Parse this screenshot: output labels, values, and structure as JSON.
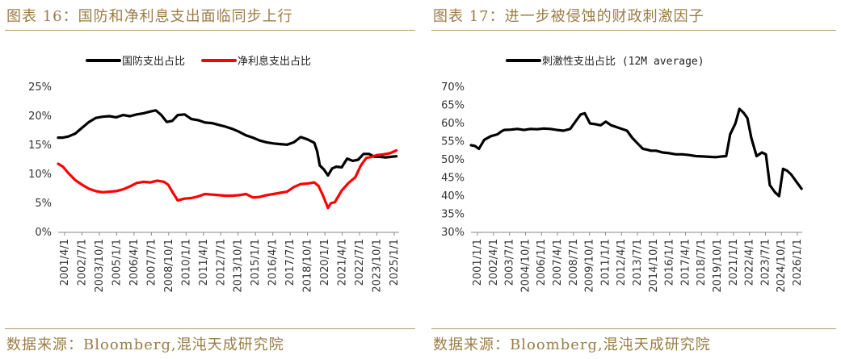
{
  "panels": [
    {
      "title": "图表 16：国防和净利息支出面临同步上行",
      "source": "数据来源：Bloomberg,混沌天成研究院"
    },
    {
      "title": "图表 17：进一步被侵蚀的财政刺激因子",
      "source": "数据来源：Bloomberg,混沌天成研究院"
    }
  ],
  "chart_data": [
    {
      "type": "line",
      "legend_position": "top",
      "grid": false,
      "ylim": [
        0,
        25
      ],
      "y_ticks": [
        "0%",
        "5%",
        "10%",
        "15%",
        "20%",
        "25%"
      ],
      "x_range": [
        2001.25,
        2026.2
      ],
      "x_tick_labels": [
        "2001/4/1",
        "2002/7/1",
        "2003/10/1",
        "2005/1/1",
        "2006/4/1",
        "2007/7/1",
        "2008/10/1",
        "2010/1/1",
        "2011/4/1",
        "2012/7/1",
        "2013/10/1",
        "2015/1/1",
        "2016/4/1",
        "2017/7/1",
        "2018/10/1",
        "2020/1/1",
        "2021/4/1",
        "2022/7/1",
        "2023/10/1",
        "2025/1/1"
      ],
      "series": [
        {
          "name": "国防支出占比",
          "color": "#000000",
          "x": [
            2001.25,
            2001.6,
            2002.0,
            2002.5,
            2003.0,
            2003.5,
            2004.0,
            2004.5,
            2005.0,
            2005.5,
            2006.0,
            2006.5,
            2007.0,
            2007.5,
            2008.0,
            2008.4,
            2008.8,
            2009.2,
            2009.6,
            2010.0,
            2010.5,
            2011.0,
            2011.5,
            2012.0,
            2012.5,
            2013.0,
            2013.5,
            2014.0,
            2014.5,
            2015.0,
            2015.5,
            2016.0,
            2016.5,
            2017.0,
            2017.5,
            2018.0,
            2018.5,
            2019.0,
            2019.5,
            2020.0,
            2020.2,
            2020.4,
            2020.7,
            2021.0,
            2021.3,
            2021.6,
            2022.0,
            2022.4,
            2022.8,
            2023.2,
            2023.6,
            2024.0,
            2024.4,
            2024.8,
            2025.2,
            2025.6,
            2026.0
          ],
          "values": [
            16.3,
            16.3,
            16.5,
            17.0,
            18.0,
            19.0,
            19.7,
            19.9,
            20.0,
            19.8,
            20.2,
            20.0,
            20.3,
            20.5,
            20.8,
            21.0,
            20.2,
            19.0,
            19.2,
            20.2,
            20.3,
            19.5,
            19.3,
            18.9,
            18.8,
            18.5,
            18.2,
            17.8,
            17.3,
            16.7,
            16.3,
            15.8,
            15.5,
            15.3,
            15.2,
            15.1,
            15.5,
            16.4,
            16.0,
            15.4,
            14.0,
            11.5,
            10.8,
            9.8,
            11.0,
            11.3,
            11.2,
            12.7,
            12.3,
            12.5,
            13.5,
            13.5,
            13.0,
            13.0,
            12.9,
            13.0,
            13.1
          ]
        },
        {
          "name": "净利息支出占比",
          "color": "#ff0000",
          "x": [
            2001.25,
            2001.6,
            2002.0,
            2002.5,
            2003.0,
            2003.5,
            2004.0,
            2004.5,
            2005.0,
            2005.5,
            2006.0,
            2006.5,
            2007.0,
            2007.5,
            2008.0,
            2008.5,
            2009.0,
            2009.3,
            2009.6,
            2010.0,
            2010.5,
            2011.0,
            2011.5,
            2012.0,
            2012.5,
            2013.0,
            2013.5,
            2014.0,
            2014.5,
            2015.0,
            2015.5,
            2016.0,
            2016.5,
            2017.0,
            2017.5,
            2018.0,
            2018.5,
            2019.0,
            2019.5,
            2020.0,
            2020.3,
            2020.6,
            2021.0,
            2021.2,
            2021.5,
            2022.0,
            2022.5,
            2023.0,
            2023.4,
            2023.8,
            2024.2,
            2024.6,
            2025.0,
            2025.5,
            2026.0
          ],
          "values": [
            11.8,
            11.3,
            10.2,
            9.0,
            8.2,
            7.5,
            7.1,
            6.9,
            7.0,
            7.1,
            7.4,
            7.9,
            8.5,
            8.7,
            8.6,
            8.9,
            8.7,
            8.2,
            7.0,
            5.5,
            5.8,
            5.9,
            6.2,
            6.6,
            6.5,
            6.4,
            6.3,
            6.3,
            6.4,
            6.6,
            6.0,
            6.1,
            6.4,
            6.6,
            6.8,
            7.0,
            7.8,
            8.3,
            8.4,
            8.6,
            8.0,
            6.5,
            4.2,
            5.0,
            5.2,
            7.2,
            8.5,
            9.5,
            11.5,
            12.8,
            13.0,
            13.3,
            13.4,
            13.6,
            14.1
          ]
        }
      ]
    },
    {
      "type": "line",
      "legend_position": "top",
      "grid": false,
      "ylim": [
        30,
        70
      ],
      "y_ticks": [
        "30%",
        "35%",
        "40%",
        "45%",
        "50%",
        "55%",
        "60%",
        "65%",
        "70%"
      ],
      "x_range": [
        2001.0,
        2026.05
      ],
      "x_tick_labels": [
        "2001/1/1",
        "2002/4/1",
        "2003/7/1",
        "2004/10/1",
        "2006/1/1",
        "2007/4/1",
        "2008/7/1",
        "2009/10/1",
        "2011/1/1",
        "2012/4/1",
        "2013/7/1",
        "2014/10/1",
        "2016/1/1",
        "2017/4/1",
        "2018/7/1",
        "2019/10/1",
        "2021/1/1",
        "2022/4/1",
        "2023/7/1",
        "2024/10/1",
        "2026/1/1"
      ],
      "series": [
        {
          "name": "刺激性支出占比 (12M average)",
          "color": "#000000",
          "x": [
            2001.0,
            2001.3,
            2001.6,
            2002.0,
            2002.5,
            2003.0,
            2003.3,
            2003.5,
            2004.0,
            2004.5,
            2005.0,
            2005.5,
            2006.0,
            2006.5,
            2007.0,
            2007.5,
            2008.0,
            2008.5,
            2009.0,
            2009.3,
            2009.6,
            2010.0,
            2010.4,
            2010.8,
            2011.2,
            2011.6,
            2012.0,
            2012.4,
            2012.8,
            2013.2,
            2013.6,
            2014.0,
            2014.3,
            2014.6,
            2015.0,
            2015.5,
            2016.0,
            2016.5,
            2017.0,
            2017.5,
            2018.0,
            2018.5,
            2019.0,
            2019.5,
            2020.0,
            2020.3,
            2020.6,
            2021.0,
            2021.3,
            2021.6,
            2021.9,
            2022.2,
            2022.6,
            2023.0,
            2023.3,
            2023.6,
            2024.0,
            2024.3,
            2024.6,
            2024.9,
            2025.2,
            2025.6,
            2026.0
          ],
          "values": [
            54.0,
            53.8,
            53.0,
            55.5,
            56.5,
            57.0,
            57.8,
            58.2,
            58.3,
            58.5,
            58.2,
            58.5,
            58.4,
            58.6,
            58.5,
            58.2,
            58.0,
            58.5,
            61.0,
            62.5,
            62.8,
            60.0,
            59.8,
            59.5,
            60.5,
            59.5,
            59.0,
            58.5,
            58.0,
            56.0,
            54.5,
            53.0,
            52.8,
            52.5,
            52.5,
            52.0,
            51.8,
            51.5,
            51.5,
            51.3,
            51.0,
            50.9,
            50.8,
            50.7,
            50.9,
            51.0,
            57.0,
            60.0,
            64.0,
            63.0,
            61.5,
            56.0,
            51.0,
            52.0,
            51.5,
            43.0,
            41.0,
            40.0,
            47.5,
            47.0,
            46.0,
            44.0,
            42.0
          ]
        }
      ]
    }
  ]
}
